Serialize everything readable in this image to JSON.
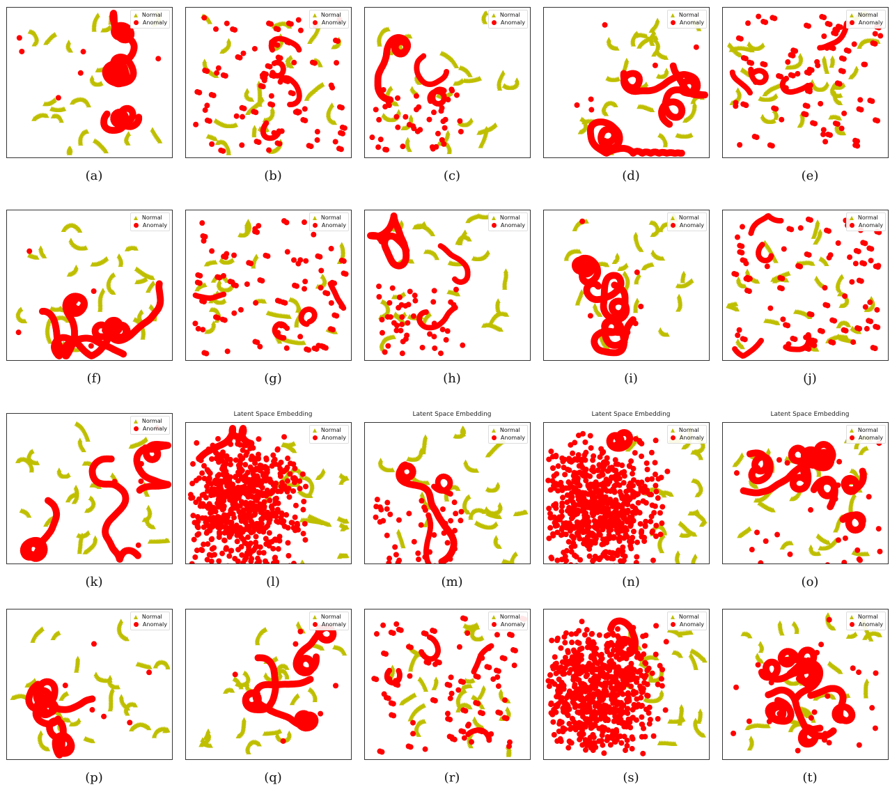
{
  "colors": {
    "normal": "#bfbf00",
    "anomaly": "#ff0000"
  },
  "legend": {
    "normal_label": "Normal",
    "anomaly_label": "Anomaly",
    "normal_marker": "triangle",
    "anomaly_marker": "circle"
  },
  "chart_data": [
    {
      "type": "scatter",
      "caption": "(a)",
      "title": "",
      "legend": [
        "Normal",
        "Anomaly"
      ],
      "legend_position": "top-right",
      "style": "loops",
      "seed": 11
    },
    {
      "type": "scatter",
      "caption": "(b)",
      "title": "",
      "legend": [
        "Normal",
        "Anomaly"
      ],
      "legend_position": "top-right",
      "style": "dots",
      "seed": 12
    },
    {
      "type": "scatter",
      "caption": "(c)",
      "title": "",
      "legend": [
        "Normal",
        "Anomaly"
      ],
      "legend_position": "top-right",
      "style": "mixed",
      "seed": 13
    },
    {
      "type": "scatter",
      "caption": "(d)",
      "title": "",
      "legend": [
        "Normal",
        "Anomaly"
      ],
      "legend_position": "top-right",
      "style": "loops",
      "seed": 14
    },
    {
      "type": "scatter",
      "caption": "(e)",
      "title": "",
      "legend": [
        "Normal",
        "Anomaly"
      ],
      "legend_position": "top-right",
      "style": "dots",
      "seed": 15
    },
    {
      "type": "scatter",
      "caption": "(f)",
      "title": "",
      "legend": [
        "Normal",
        "Anomaly"
      ],
      "legend_position": "top-right",
      "style": "loops",
      "seed": 16
    },
    {
      "type": "scatter",
      "caption": "(g)",
      "title": "",
      "legend": [
        "Normal",
        "Anomaly"
      ],
      "legend_position": "top-right",
      "style": "dots",
      "seed": 17
    },
    {
      "type": "scatter",
      "caption": "(h)",
      "title": "",
      "legend": [
        "Normal",
        "Anomaly"
      ],
      "legend_position": "top-right",
      "style": "mixed",
      "seed": 18
    },
    {
      "type": "scatter",
      "caption": "(i)",
      "title": "",
      "legend": [
        "Normal",
        "Anomaly"
      ],
      "legend_position": "top-right",
      "style": "loops",
      "seed": 19
    },
    {
      "type": "scatter",
      "caption": "(j)",
      "title": "",
      "legend": [
        "Normal",
        "Anomaly"
      ],
      "legend_position": "top-right",
      "style": "dots",
      "seed": 20
    },
    {
      "type": "scatter",
      "caption": "(k)",
      "title": "",
      "legend": [
        "Normal",
        "Anomaly"
      ],
      "legend_position": "top-right",
      "style": "loops",
      "seed": 21
    },
    {
      "type": "scatter",
      "caption": "(l)",
      "title": "Latent Space Embedding",
      "legend": [
        "Normal",
        "Anomaly"
      ],
      "legend_position": "top-right",
      "style": "blob",
      "seed": 22
    },
    {
      "type": "scatter",
      "caption": "(m)",
      "title": "Latent Space Embedding",
      "legend": [
        "Normal",
        "Anomaly"
      ],
      "legend_position": "top-right",
      "style": "mixed",
      "seed": 23
    },
    {
      "type": "scatter",
      "caption": "(n)",
      "title": "Latent Space Embedding",
      "legend": [
        "Normal",
        "Anomaly"
      ],
      "legend_position": "top-right",
      "style": "blob",
      "seed": 24
    },
    {
      "type": "scatter",
      "caption": "(o)",
      "title": "Latent Space Embedding",
      "legend": [
        "Normal",
        "Anomaly"
      ],
      "legend_position": "top-right",
      "style": "dense",
      "seed": 25
    },
    {
      "type": "scatter",
      "caption": "(p)",
      "title": "",
      "legend": [
        "Normal",
        "Anomaly"
      ],
      "legend_position": "top-right",
      "style": "loops",
      "seed": 26
    },
    {
      "type": "scatter",
      "caption": "(q)",
      "title": "",
      "legend": [
        "Normal",
        "Anomaly"
      ],
      "legend_position": "top-right",
      "style": "loops",
      "seed": 27
    },
    {
      "type": "scatter",
      "caption": "(r)",
      "title": "",
      "legend": [
        "Normal",
        "Anomaly"
      ],
      "legend_position": "top-right",
      "style": "dots",
      "seed": 28
    },
    {
      "type": "scatter",
      "caption": "(s)",
      "title": "",
      "legend": [
        "Normal",
        "Anomaly"
      ],
      "legend_position": "top-right",
      "style": "blob",
      "seed": 29
    },
    {
      "type": "scatter",
      "caption": "(t)",
      "title": "",
      "legend": [
        "Normal",
        "Anomaly"
      ],
      "legend_position": "top-right",
      "style": "dense",
      "seed": 30
    }
  ]
}
